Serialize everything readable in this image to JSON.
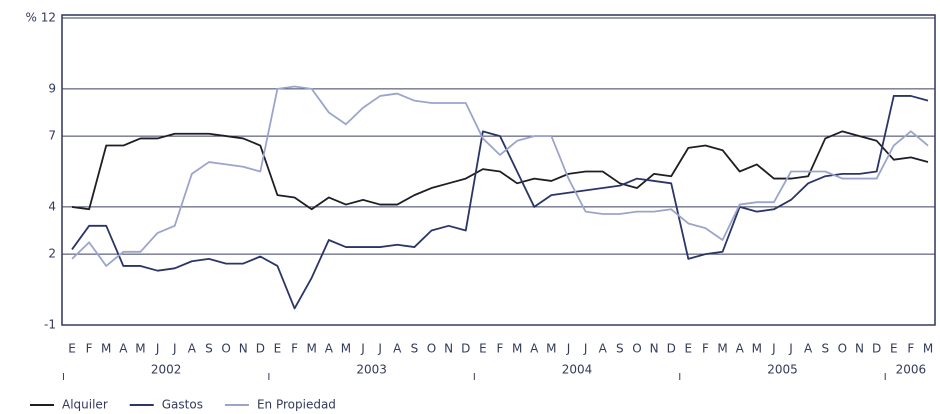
{
  "chart_data": {
    "type": "line",
    "categories": [
      "E",
      "F",
      "M",
      "A",
      "M",
      "J",
      "J",
      "A",
      "S",
      "O",
      "N",
      "D",
      "E",
      "F",
      "M",
      "A",
      "M",
      "J",
      "J",
      "A",
      "S",
      "O",
      "N",
      "D",
      "E",
      "F",
      "M",
      "A",
      "M",
      "J",
      "J",
      "A",
      "S",
      "O",
      "N",
      "D",
      "E",
      "F",
      "M",
      "A",
      "M",
      "J",
      "J",
      "A",
      "S",
      "O",
      "N",
      "D",
      "E",
      "F",
      "M"
    ],
    "year_labels": [
      "2002",
      "2003",
      "2004",
      "2005",
      "2006"
    ],
    "series": [
      {
        "name": "Alquiler",
        "color": "#1e1e24",
        "values": [
          4.0,
          3.9,
          6.6,
          6.6,
          6.9,
          6.9,
          7.1,
          7.1,
          7.1,
          7.0,
          6.9,
          6.6,
          4.5,
          4.4,
          3.9,
          4.4,
          4.1,
          4.3,
          4.1,
          4.1,
          4.5,
          4.8,
          5.0,
          5.2,
          5.6,
          5.5,
          5.0,
          5.2,
          5.1,
          5.4,
          5.5,
          5.5,
          5.0,
          4.8,
          5.4,
          5.3,
          6.5,
          6.6,
          6.4,
          5.5,
          5.8,
          5.2,
          5.2,
          5.3,
          6.9,
          7.2,
          7.0,
          6.8,
          6.0,
          6.1,
          5.9
        ]
      },
      {
        "name": "Gastos",
        "color": "#2b3566",
        "values": [
          2.2,
          3.2,
          3.2,
          1.5,
          1.5,
          1.3,
          1.4,
          1.7,
          1.8,
          1.6,
          1.6,
          1.9,
          1.5,
          -0.3,
          1.0,
          2.6,
          2.3,
          2.3,
          2.3,
          2.4,
          2.3,
          3.0,
          3.2,
          3.0,
          7.2,
          7.0,
          5.5,
          4.0,
          4.5,
          4.6,
          4.7,
          4.8,
          4.9,
          5.2,
          5.1,
          5.0,
          1.8,
          2.0,
          2.1,
          4.0,
          3.8,
          3.9,
          4.3,
          5.0,
          5.3,
          5.4,
          5.4,
          5.5,
          8.7,
          8.7,
          8.5
        ]
      },
      {
        "name": "En Propiedad",
        "color": "#9ba5cc",
        "values": [
          1.8,
          2.5,
          1.5,
          2.1,
          2.1,
          2.9,
          3.2,
          5.4,
          5.9,
          5.8,
          5.7,
          5.5,
          9.0,
          9.1,
          9.0,
          8.0,
          7.5,
          8.2,
          8.7,
          8.8,
          8.5,
          8.4,
          8.4,
          8.4,
          6.9,
          6.2,
          6.8,
          7.0,
          7.0,
          5.2,
          3.8,
          3.7,
          3.7,
          3.8,
          3.8,
          3.9,
          3.3,
          3.1,
          2.6,
          4.1,
          4.2,
          4.2,
          5.5,
          5.5,
          5.5,
          5.2,
          5.2,
          5.2,
          6.6,
          7.2,
          6.6
        ]
      }
    ],
    "ylim": [
      -1,
      12
    ],
    "yticks": [
      {
        "value": 12,
        "label": "% 12"
      },
      9,
      7,
      4,
      2,
      -1
    ],
    "grid": true
  }
}
